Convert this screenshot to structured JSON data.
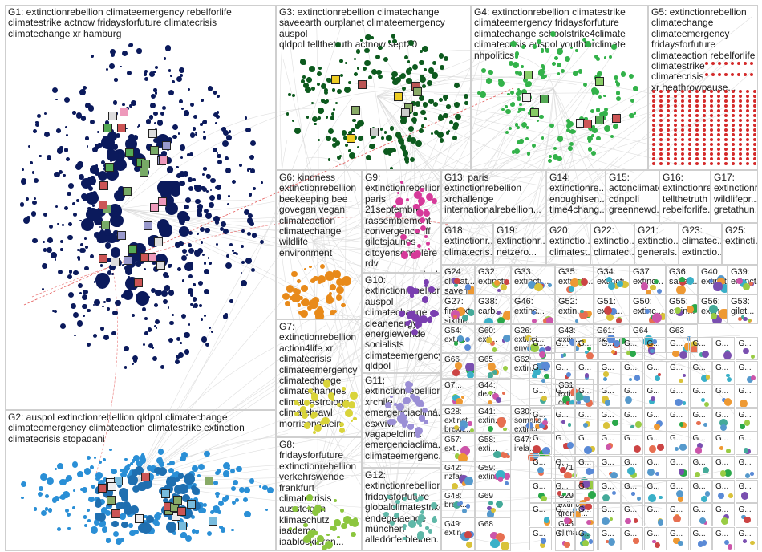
{
  "groups": [
    {
      "id": "G1",
      "text": "G1: extinctionrebellion climateemergency rebelforlife\nclimatestrike actnow fridaysforfuture climatecrisis\nclimatechange xr hamburg",
      "color": "#0b1a5c"
    },
    {
      "id": "G2",
      "text": "G2: auspol extinctionrebellion qldpol climatechange\nclimateemergency climateaction climatestrike extinction\nclimatecrisis stopadani",
      "color": "#2a8fd6"
    },
    {
      "id": "G3",
      "text": "G3: extinctionrebellion climatechange\nsaveearth ourplanet climateemergency auspol\nqldpol tellthetruth actnow sept20",
      "color": "#0d5a1e"
    },
    {
      "id": "G4",
      "text": "G4: extinctionrebellion climatestrike\nclimateemergency fridaysforfuture\nclimatechange schoolstrike4climate\nclimatecrisis auspol youthforclimate\nnhpolitics",
      "color": "#33b24a"
    },
    {
      "id": "G5",
      "text": "G5: extinctionrebellion\nclimatechange\nclimateemergency\nfridaysforfuture\nclimateaction rebelforlife\nclimatestrike climatecrisis\nxr heathrowpause...",
      "color": "#d42a2a"
    },
    {
      "id": "G6",
      "text": "G6: kindness\nextinctionrebellion\nbeekeeping bee\ngovegan vegan\nclimateaction\nclimatechange\nwildlife environment",
      "color": "#e88a1a"
    },
    {
      "id": "G7",
      "text": "G7:\nextinctionrebellion\naction4life xr\nclimatecrisis\nclimateemergency\nclimatechange\nclimatechanges\nclimateastrology\nclimatebrawl\nmorrisonsdiein",
      "color": "#d9d43a"
    },
    {
      "id": "G8",
      "text": "G8: fridaysforfuture\nextinctionrebellion\nverkehrswende\nfrankfurt\nclimatecrisis\naussteigen\nklimaschutz\niaademo\niaablockieren...",
      "color": "#8cc63f"
    },
    {
      "id": "G9",
      "text": "G9:\nextinctionrebellion\nparis 21septembre\nrassemblement\nconvergence fff\ngiletsjaunes\ncitoyensencolère\nrdv\nconvergencedesl...",
      "color": "#d63a9a"
    },
    {
      "id": "G10",
      "text": "G10:\nextinctionrebellion\nauspol\nclimatechange\ncleanenergy\nenergiewende\nsocialists\nclimateemergency\nqldpol stopadani...",
      "color": "#7a3fb0"
    },
    {
      "id": "G11",
      "text": "G11:\nextinctionrebellion\nxrchile\nemergenciaclimá...\nesxvivir\nvagapelclima\nemergenciaclima...\nclimateemergenc...",
      "color": "#9b8fd6"
    },
    {
      "id": "G12",
      "text": "G12:\nextinctionrebellion\nfridaysforfuture\nglobalclimatestrike\nendegelaende\nmünchen\nalledörferbleiben...",
      "color": "#5fb8a8"
    },
    {
      "id": "G13",
      "text": "G13: paris\nextinctionrebellion\nxrchallenge\ninternationalrebellion...",
      "color": "#3aa0d6"
    },
    {
      "id": "G14",
      "text": "G14:\nextinctionre...\nenoughisen...\ntime4chang...",
      "color": "#4a90d9"
    },
    {
      "id": "G15",
      "text": "G15:\nactonclimate\ncdnpoli\ngreennewd...",
      "color": "#6ab04c"
    },
    {
      "id": "G16",
      "text": "G16:\nextinctionre...\ntellthetruth\nrebelforlife...",
      "color": "#3a9a3a"
    },
    {
      "id": "G17",
      "text": "G17:\nextinctionre...\nwildlifepr...\ngretathun...",
      "color": "#d44"
    },
    {
      "id": "G18",
      "text": "G18:\nextinctionr...\nclimatecris...",
      "color": "#e29a2a"
    },
    {
      "id": "G19",
      "text": "G19:\nextinctionr...\nnetzero...",
      "color": "#c83a8a"
    },
    {
      "id": "G20",
      "text": "G20:\nextinctio...\nclimatest...",
      "color": "#2aa84a"
    },
    {
      "id": "G22",
      "text": "G22:\nextinctio...\nclimatec...",
      "color": "#9a5ac8"
    },
    {
      "id": "G21",
      "text": "G21:\nextinctio...\ngenerals...",
      "color": "#5a8ad6"
    },
    {
      "id": "G23",
      "text": "G23:\nclimatec...\nextinctio...",
      "color": "#3ab0c8"
    },
    {
      "id": "G25",
      "text": "G25:\nextincti...",
      "color": "#1a3a8a"
    }
  ],
  "small_groups": [
    {
      "id": "G24",
      "text": "G24:\nclimat...\nsavem...\nmaldiv..."
    },
    {
      "id": "G32",
      "text": "G32:\nextincti..."
    },
    {
      "id": "G33",
      "text": "G33:\nextincti..."
    },
    {
      "id": "G35",
      "text": "G35:\nextincti..."
    },
    {
      "id": "G34",
      "text": "G34:\nextincti..."
    },
    {
      "id": "G37",
      "text": "G37:\nextinc..."
    },
    {
      "id": "G36",
      "text": "G36:\nsavet..."
    },
    {
      "id": "G40",
      "text": "G40:\nextinct..."
    },
    {
      "id": "G39",
      "text": "G39:\nextinct..."
    },
    {
      "id": "G27",
      "text": "G27:\nfirstext\nsixthe..."
    },
    {
      "id": "G38",
      "text": "G38:\ncarb..."
    },
    {
      "id": "G46",
      "text": "G46:\nextinc..."
    },
    {
      "id": "G52",
      "text": "G52:\nextin..."
    },
    {
      "id": "G51",
      "text": "G51:\nextin..."
    },
    {
      "id": "G50",
      "text": "G50:\nextinc..."
    },
    {
      "id": "G55",
      "text": "G55:\nextin..."
    },
    {
      "id": "G56",
      "text": "G56:\nextin..."
    },
    {
      "id": "G53",
      "text": "G53:\ngilet..."
    },
    {
      "id": "G54",
      "text": "G54:\nextin..."
    },
    {
      "id": "G60",
      "text": "G60:\nexti..."
    },
    {
      "id": "G26",
      "text": "G26:\nextinct...\nenviro..."
    },
    {
      "id": "G43",
      "text": "G43:\nextin..."
    },
    {
      "id": "G61",
      "text": "G61:\nexti..."
    },
    {
      "id": "G64",
      "text": "G64"
    },
    {
      "id": "G63",
      "text": "G63"
    },
    {
      "id": "G66",
      "text": "G66"
    },
    {
      "id": "G65",
      "text": "G65"
    },
    {
      "id": "G7x",
      "text": "G7..."
    },
    {
      "id": "G44",
      "text": "G44:\ndean..."
    },
    {
      "id": "G62",
      "text": "G62:\nextin..."
    },
    {
      "id": "G28",
      "text": "G28:\nextinct\nbrexit..."
    },
    {
      "id": "G41",
      "text": "G41:\nextin..."
    },
    {
      "id": "G57",
      "text": "G57:\nexti..."
    },
    {
      "id": "G58",
      "text": "G58:\nexti..."
    },
    {
      "id": "G42",
      "text": "G42:\nnzfar..."
    },
    {
      "id": "G59",
      "text": "G59:\nextin..."
    },
    {
      "id": "G31",
      "text": "G31:\nextinct\nclimat..."
    },
    {
      "id": "G48",
      "text": "G48:\nbrext..."
    },
    {
      "id": "G69",
      "text": "G69"
    },
    {
      "id": "G30",
      "text": "G30:\nsomalia\nextinct..."
    },
    {
      "id": "G49",
      "text": "G49:\nextin..."
    },
    {
      "id": "G68",
      "text": "G68"
    },
    {
      "id": "G47",
      "text": "G47:\nirela..."
    },
    {
      "id": "G71",
      "text": "G71"
    },
    {
      "id": "G29",
      "text": "G29:\nextinct\ngrenfe..."
    },
    {
      "id": "G45",
      "text": "G45:\nclima..."
    },
    {
      "id": "G70",
      "text": "G70"
    },
    {
      "id": "G67",
      "text": "G67"
    }
  ],
  "tiny_label": "G...",
  "colors": {
    "edge": "#d7d7d7",
    "red_edge": "#e04040"
  }
}
